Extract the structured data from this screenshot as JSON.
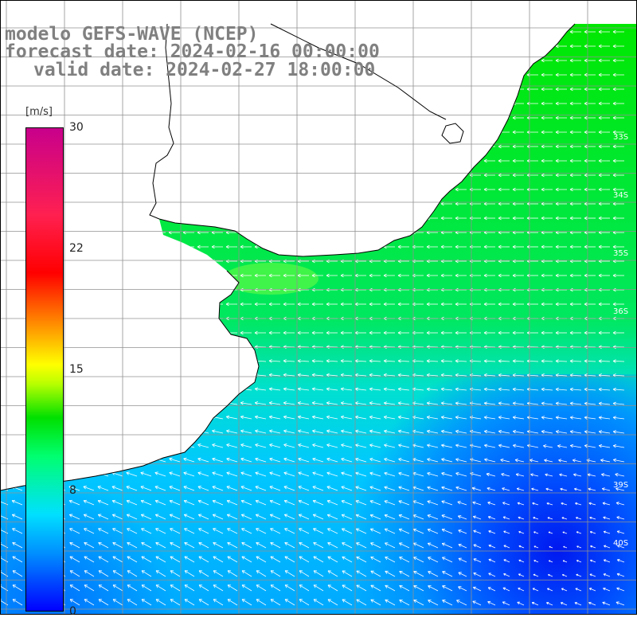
{
  "header": {
    "line1": "modelo GEFS-WAVE (NCEP)",
    "line2": "forecast date: 2024-02-16 00:00:00",
    "line3": "valid date: 2024-02-27 18:00:00"
  },
  "colorbar": {
    "unit": "[m/s]",
    "ticks": [
      "30",
      "22",
      "15",
      "8",
      "0"
    ],
    "range": [
      0,
      30
    ]
  },
  "lat_labels": [
    "33S",
    "34S",
    "35S",
    "36S",
    "39S",
    "40S"
  ],
  "colors": {
    "land": "#ffffff",
    "grid": "#909090",
    "coast": "#000000",
    "arrows": "#ffffff",
    "title": "#808080"
  },
  "variable": "wind-speed"
}
